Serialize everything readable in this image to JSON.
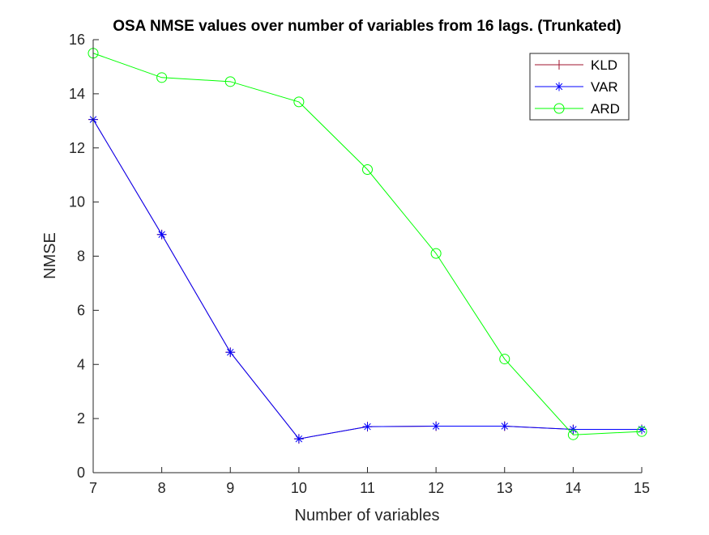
{
  "chart_data": {
    "type": "line",
    "title": "OSA NMSE values over number of variables from 16 lags. (Trunkated)",
    "xlabel": "Number of variables",
    "ylabel": "NMSE",
    "x": [
      7,
      8,
      9,
      10,
      11,
      12,
      13,
      14,
      15
    ],
    "xlim": [
      7,
      15
    ],
    "ylim": [
      0,
      16
    ],
    "xticks": [
      7,
      8,
      9,
      10,
      11,
      12,
      13,
      14,
      15
    ],
    "yticks": [
      0,
      2,
      4,
      6,
      8,
      10,
      12,
      14,
      16
    ],
    "grid": false,
    "legend_position": "top-right",
    "series": [
      {
        "name": "KLD",
        "color": "#a2142f",
        "marker": "plus",
        "values": [
          13.05,
          8.8,
          4.45,
          1.25,
          1.7,
          1.72,
          1.72,
          1.6,
          1.6
        ]
      },
      {
        "name": "VAR",
        "color": "#0000ff",
        "marker": "asterisk",
        "values": [
          13.05,
          8.8,
          4.45,
          1.25,
          1.7,
          1.72,
          1.72,
          1.6,
          1.6
        ]
      },
      {
        "name": "ARD",
        "color": "#00ff00",
        "marker": "circle",
        "values": [
          15.5,
          14.6,
          14.45,
          13.7,
          11.2,
          8.1,
          4.2,
          1.4,
          1.52
        ]
      }
    ]
  }
}
